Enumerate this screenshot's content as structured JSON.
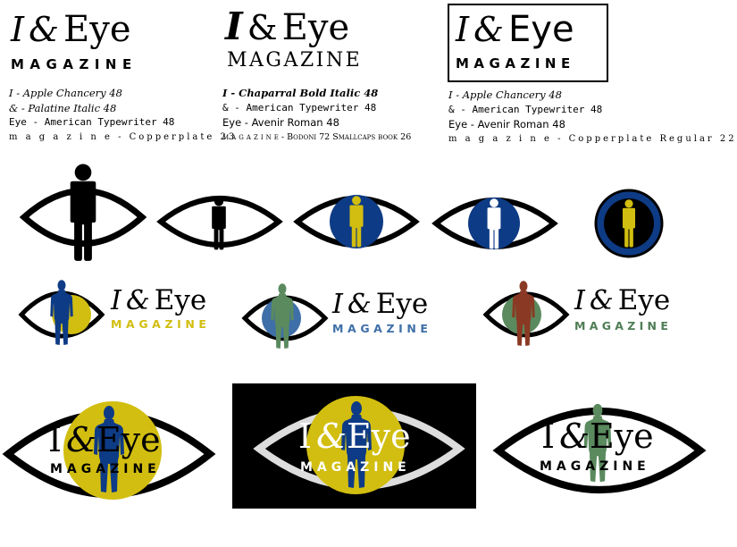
{
  "brand": {
    "letter_i": "I",
    "ampersand": "&",
    "eye_word": "Eye",
    "tagline": "MAGAZINE"
  },
  "font_specs": {
    "col1": [
      "I - Apple Chancery 48",
      "& - Palatine Italic 48",
      "Eye - American Typewriter 48",
      "m a g a z i n e - Copperplate 23"
    ],
    "col2": [
      "I - Chaparral Bold Italic 48",
      "& - American Typewriter 48",
      "Eye - Avenir Roman 48",
      "m a g a z i n e - Bodoni 72 Smallcaps book 26"
    ],
    "col3": [
      "I - Apple Chancery 48",
      "& - American Typewriter 48",
      "Eye - Avenir Roman 48",
      "m a g a z i n e - Copperplate Regular 22"
    ]
  },
  "colors": {
    "navy": "#0e3b85",
    "mustard": "#d2be10",
    "sage": "#5a8a5e",
    "steel_blue": "#3f6fa8",
    "rust": "#8a3a24",
    "olive_green": "#4f7d55",
    "black": "#000000",
    "pupil_gray": "#dddddd"
  }
}
